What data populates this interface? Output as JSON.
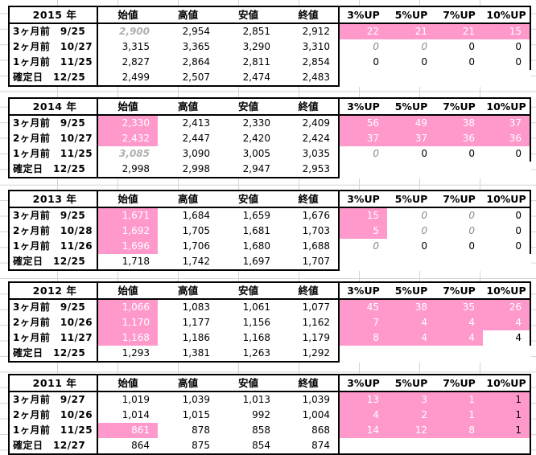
{
  "columns": [
    "始値",
    "高値",
    "安値",
    "終値",
    "3%UP",
    "5%UP",
    "7%UP",
    "10%UP"
  ],
  "blocks": [
    {
      "year": "2015 年",
      "rows": [
        {
          "label": "3ヶ月前　9/25",
          "open": "2,900",
          "high": "2,954",
          "low": "2,851",
          "close": "2,912",
          "p3": "22",
          "p5": "21",
          "p7": "21",
          "p10": "15"
        },
        {
          "label": "2ヶ月前　10/27",
          "open": "3,315",
          "high": "3,365",
          "low": "3,290",
          "close": "3,310",
          "p3": "0",
          "p5": "0",
          "p7": "0",
          "p10": "0"
        },
        {
          "label": "1ヶ月前　11/25",
          "open": "2,827",
          "high": "2,864",
          "low": "2,811",
          "close": "2,854",
          "p3": "0",
          "p5": "0",
          "p7": "0",
          "p10": "0"
        },
        {
          "label": "確定日　12/25",
          "open": "2,499",
          "high": "2,507",
          "low": "2,474",
          "close": "2,483"
        }
      ]
    },
    {
      "year": "2014 年",
      "rows": [
        {
          "label": "3ヶ月前　9/25",
          "open": "2,330",
          "high": "2,413",
          "low": "2,330",
          "close": "2,409",
          "p3": "56",
          "p5": "49",
          "p7": "38",
          "p10": "37"
        },
        {
          "label": "2ヶ月前　10/27",
          "open": "2,432",
          "high": "2,447",
          "low": "2,420",
          "close": "2,424",
          "p3": "37",
          "p5": "37",
          "p7": "36",
          "p10": "36"
        },
        {
          "label": "1ヶ月前　11/25",
          "open": "3,085",
          "high": "3,090",
          "low": "3,005",
          "close": "3,035",
          "p3": "0",
          "p5": "0",
          "p7": "0",
          "p10": "0"
        },
        {
          "label": "確定日　12/25",
          "open": "2,998",
          "high": "2,998",
          "low": "2,947",
          "close": "2,953"
        }
      ]
    },
    {
      "year": "2013 年",
      "rows": [
        {
          "label": "3ヶ月前　9/25",
          "open": "1,671",
          "high": "1,684",
          "low": "1,659",
          "close": "1,676",
          "p3": "15",
          "p5": "0",
          "p7": "0",
          "p10": "0"
        },
        {
          "label": "2ヶ月前　10/28",
          "open": "1,692",
          "high": "1,705",
          "low": "1,681",
          "close": "1,703",
          "p3": "5",
          "p5": "0",
          "p7": "0",
          "p10": "0"
        },
        {
          "label": "1ヶ月前　11/26",
          "open": "1,696",
          "high": "1,706",
          "low": "1,680",
          "close": "1,688",
          "p3": "0",
          "p5": "0",
          "p7": "0",
          "p10": "0"
        },
        {
          "label": "確定日　12/25",
          "open": "1,718",
          "high": "1,742",
          "low": "1,697",
          "close": "1,707"
        }
      ]
    },
    {
      "year": "2012 年",
      "rows": [
        {
          "label": "3ヶ月前　9/25",
          "open": "1,066",
          "high": "1,083",
          "low": "1,061",
          "close": "1,077",
          "p3": "45",
          "p5": "38",
          "p7": "35",
          "p10": "26"
        },
        {
          "label": "2ヶ月前　10/26",
          "open": "1,170",
          "high": "1,177",
          "low": "1,156",
          "close": "1,162",
          "p3": "7",
          "p5": "4",
          "p7": "4",
          "p10": "4"
        },
        {
          "label": "1ヶ月前　11/27",
          "open": "1,168",
          "high": "1,186",
          "low": "1,168",
          "close": "1,179",
          "p3": "8",
          "p5": "4",
          "p7": "4",
          "p10": "4"
        },
        {
          "label": "確定日　12/25",
          "open": "1,293",
          "high": "1,381",
          "low": "1,263",
          "close": "1,292"
        }
      ]
    },
    {
      "year": "2011 年",
      "rows": [
        {
          "label": "3ヶ月前　9/27",
          "open": "1,019",
          "high": "1,039",
          "low": "1,013",
          "close": "1,039",
          "p3": "13",
          "p5": "3",
          "p7": "1",
          "p10": "1"
        },
        {
          "label": "2ヶ月前　10/26",
          "open": "1,014",
          "high": "1,015",
          "low": "992",
          "close": "1,004",
          "p3": "4",
          "p5": "2",
          "p7": "1",
          "p10": "1"
        },
        {
          "label": "1ヶ月前　11/25",
          "open": "861",
          "high": "878",
          "low": "858",
          "close": "868",
          "p3": "14",
          "p5": "12",
          "p7": "8",
          "p10": "1"
        },
        {
          "label": "確定日　12/27",
          "open": "864",
          "high": "875",
          "low": "854",
          "close": "874"
        }
      ]
    }
  ],
  "colors": {
    "highlight": "#ff99cc",
    "grid": "#d4d4d4",
    "border": "#000000"
  }
}
